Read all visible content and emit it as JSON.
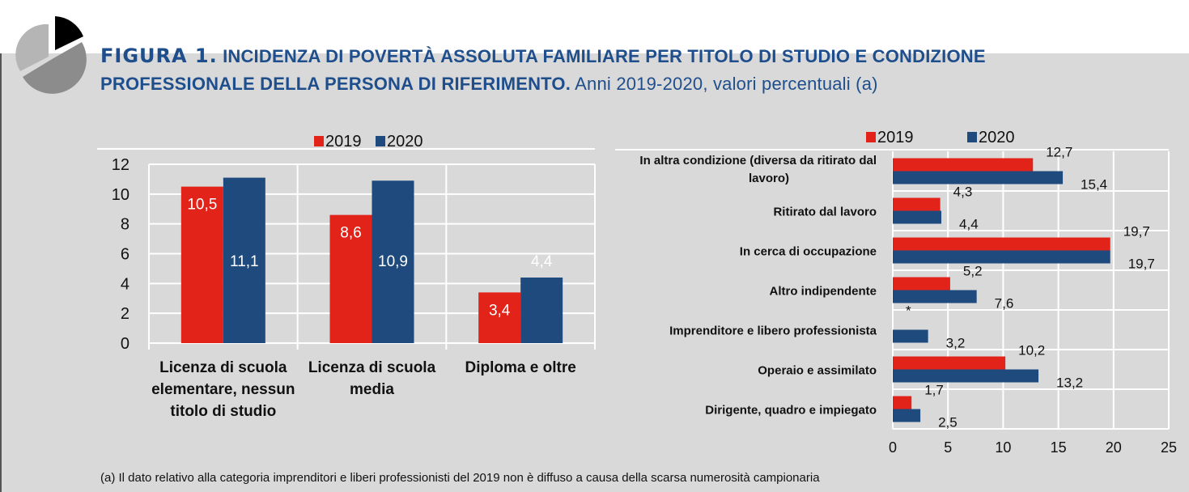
{
  "title": {
    "figure": "FIGURA 1.",
    "main": "INCIDENZA DI POVERTÀ ASSOLUTA FAMILIARE PER TITOLO DI STUDIO E CONDIZIONE PROFESSIONALE DELLA PERSONA DI RIFERIMENTO.",
    "sub": "Anni 2019-2020, valori percentuali (a)"
  },
  "colors": {
    "2019": "#e2231a",
    "2020": "#1f4a7e",
    "background": "#d9d9d9",
    "title": "#1f4e8c"
  },
  "footnote": "(a) Il dato relativo alla categoria imprenditori e liberi professionisti del 2019 non è diffuso a causa della scarsa numerosità campionaria",
  "chart_data": [
    {
      "type": "bar",
      "orientation": "vertical",
      "legend": "top",
      "grid": true,
      "categories": [
        "Licenza di scuola elementare, nessun titolo di studio",
        "Licenza di scuola media",
        "Diploma e oltre"
      ],
      "series": [
        {
          "name": "2019",
          "values": [
            10.5,
            8.6,
            3.4
          ],
          "labels": [
            "10,5",
            "8,6",
            "3,4"
          ]
        },
        {
          "name": "2020",
          "values": [
            11.1,
            10.9,
            4.4
          ],
          "labels": [
            "11,1",
            "10,9",
            "4,4"
          ]
        }
      ],
      "ylim": [
        0,
        12
      ],
      "yticks": [
        "0",
        "2",
        "4",
        "6",
        "8",
        "10",
        "12"
      ]
    },
    {
      "type": "bar",
      "orientation": "horizontal",
      "legend": "top",
      "grid": true,
      "categories": [
        "In altra condizione (diversa da ritirato dal lavoro)",
        "Ritirato dal lavoro",
        "In cerca di occupazione",
        "Altro indipendente",
        "Imprenditore e libero professionista",
        "Operaio e assimilato",
        "Dirigente, quadro e impiegato"
      ],
      "series": [
        {
          "name": "2019",
          "values": [
            12.7,
            4.3,
            19.7,
            5.2,
            null,
            10.2,
            1.7
          ],
          "labels": [
            "12,7",
            "4,3",
            "19,7",
            "5,2",
            "*",
            "10,2",
            "1,7"
          ]
        },
        {
          "name": "2020",
          "values": [
            15.4,
            4.4,
            19.7,
            7.6,
            3.2,
            13.2,
            2.5
          ],
          "labels": [
            "15,4",
            "4,4",
            "19,7",
            "7,6",
            "3,2",
            "13,2",
            "2,5"
          ]
        }
      ],
      "xlim": [
        0,
        25
      ],
      "xticks": [
        "0",
        "5",
        "10",
        "15",
        "20",
        "25"
      ]
    }
  ]
}
